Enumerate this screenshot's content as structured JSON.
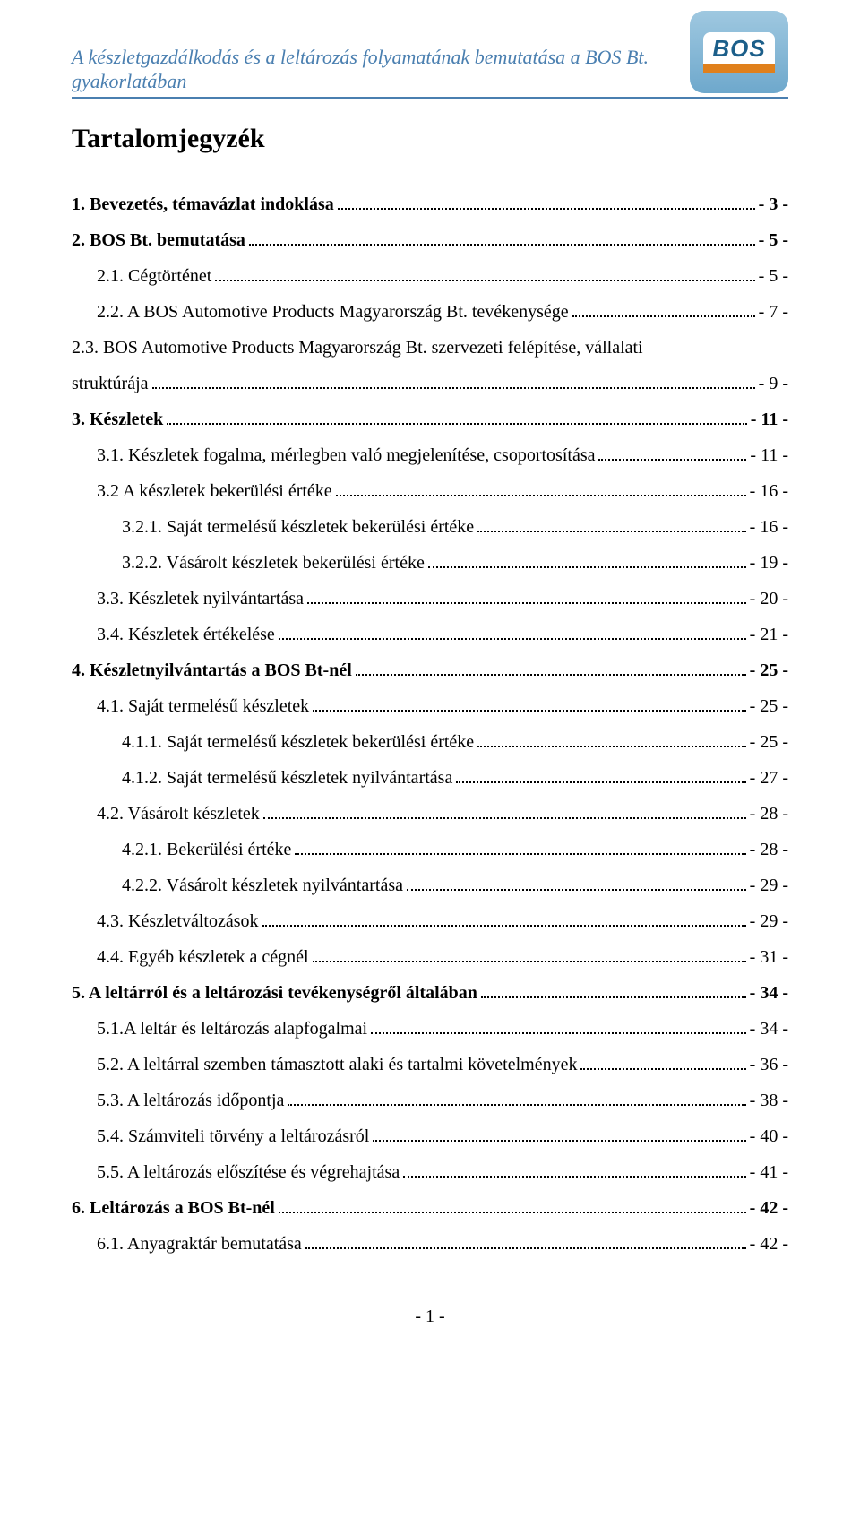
{
  "header": {
    "title": "A készletgazdálkodás és a leltározás folyamatának bemutatása a BOS Bt. gyakorlatában",
    "logo_text": "BOS",
    "title_color": "#4a7fb0",
    "rule_color": "#4a7fb0"
  },
  "toc": {
    "title": "Tartalomjegyzék",
    "entries": [
      {
        "label": "1. Bevezetés, témavázlat indoklása",
        "page": "- 3 -",
        "indent": 0,
        "bold": true
      },
      {
        "label": "2. BOS Bt. bemutatása",
        "page": "- 5 -",
        "indent": 0,
        "bold": true
      },
      {
        "label": "2.1. Cégtörténet",
        "page": "- 5 -",
        "indent": 1,
        "bold": false
      },
      {
        "label": "2.2. A BOS Automotive Products Magyarország Bt. tevékenysége",
        "page": "- 7 -",
        "indent": 1,
        "bold": false
      },
      {
        "label": "2.3. BOS Automotive Products Magyarország Bt. szervezeti felépítése, vállalati",
        "label2": "struktúrája",
        "page": "- 9 -",
        "indent": 1,
        "bold": false
      },
      {
        "label": "3. Készletek",
        "page": "- 11 -",
        "indent": 0,
        "bold": true
      },
      {
        "label": "3.1. Készletek fogalma, mérlegben való megjelenítése, csoportosítása",
        "page": "- 11 -",
        "indent": 1,
        "bold": false
      },
      {
        "label": "3.2 A készletek bekerülési értéke",
        "page": "- 16 -",
        "indent": 1,
        "bold": false
      },
      {
        "label": "3.2.1. Saját termelésű készletek bekerülési értéke",
        "page": "- 16 -",
        "indent": 2,
        "bold": false
      },
      {
        "label": "3.2.2. Vásárolt készletek bekerülési értéke",
        "page": "- 19 -",
        "indent": 2,
        "bold": false
      },
      {
        "label": "3.3. Készletek nyilvántartása",
        "page": "- 20 -",
        "indent": 1,
        "bold": false
      },
      {
        "label": "3.4. Készletek értékelése",
        "page": "- 21 -",
        "indent": 1,
        "bold": false
      },
      {
        "label": "4. Készletnyilvántartás a BOS Bt-nél",
        "page": "- 25 -",
        "indent": 0,
        "bold": true
      },
      {
        "label": "4.1. Saját termelésű készletek",
        "page": "- 25 -",
        "indent": 1,
        "bold": false
      },
      {
        "label": "4.1.1. Saját termelésű készletek bekerülési értéke",
        "page": "- 25 -",
        "indent": 2,
        "bold": false
      },
      {
        "label": "4.1.2. Saját termelésű készletek nyilvántartása",
        "page": "- 27 -",
        "indent": 2,
        "bold": false
      },
      {
        "label": "4.2. Vásárolt készletek",
        "page": "- 28 -",
        "indent": 1,
        "bold": false
      },
      {
        "label": "4.2.1. Bekerülési értéke",
        "page": "- 28 -",
        "indent": 2,
        "bold": false
      },
      {
        "label": "4.2.2. Vásárolt készletek nyilvántartása",
        "page": "- 29 -",
        "indent": 2,
        "bold": false
      },
      {
        "label": "4.3. Készletváltozások",
        "page": "- 29 -",
        "indent": 1,
        "bold": false
      },
      {
        "label": "4.4. Egyéb készletek a cégnél",
        "page": "- 31 -",
        "indent": 1,
        "bold": false
      },
      {
        "label": "5. A leltárról és a leltározási tevékenységről általában",
        "page": "- 34 -",
        "indent": 0,
        "bold": true
      },
      {
        "label": "5.1.A leltár és leltározás alapfogalmai",
        "page": "- 34 -",
        "indent": 1,
        "bold": false
      },
      {
        "label": "5.2. A leltárral szemben támasztott alaki és tartalmi követelmények",
        "page": "- 36 -",
        "indent": 1,
        "bold": false
      },
      {
        "label": "5.3. A leltározás időpontja",
        "page": "- 38 -",
        "indent": 1,
        "bold": false
      },
      {
        "label": "5.4. Számviteli törvény a leltározásról",
        "page": "- 40 -",
        "indent": 1,
        "bold": false
      },
      {
        "label": "5.5. A leltározás előszítése és végrehajtása",
        "page": "- 41 -",
        "indent": 1,
        "bold": false
      },
      {
        "label": "6. Leltározás a BOS Bt-nél",
        "page": "- 42 -",
        "indent": 0,
        "bold": true
      },
      {
        "label": "6.1. Anyagraktár bemutatása",
        "page": "- 42 -",
        "indent": 1,
        "bold": false
      }
    ]
  },
  "footer": {
    "page_number": "- 1 -"
  }
}
